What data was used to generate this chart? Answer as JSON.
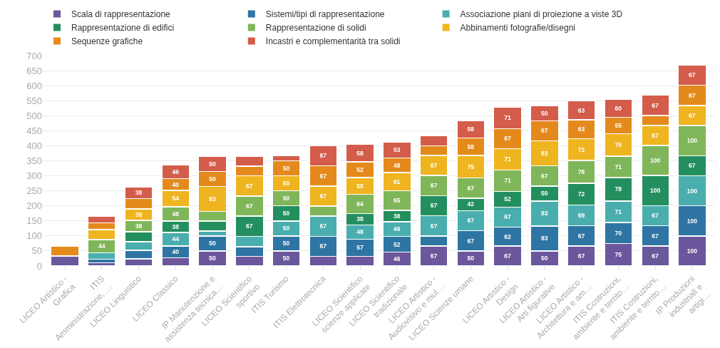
{
  "chart_data": {
    "type": "bar",
    "stacked": true,
    "legend": "top",
    "grid": "y",
    "categories": [
      "LICEO Artistico - Grafica",
      "ITIS Amministrazione, …",
      "LICEO Linguistico",
      "LICEO Classico",
      "IP Manutenzione e assistenza tecnica…",
      "LICEO Scientifico sportivo",
      "ITIS Turismo",
      "ITIS Elettrotecnica",
      "LICEO Scientifico scienze applicate",
      "LICEO Scientifico tradizionale",
      "LICEO Artistico - Audiovisivo e mul…",
      "LICEO Scienze umane",
      "LICEO Artistico - Design",
      "LICEO Artistico - Arti figurative",
      "LICEO Artistico - Architettura e am…",
      "ITIS Costruzioni, ambiente e territo…",
      "ITIS Costruzioni, ambiente e territo…",
      "IP Produzioni industriali e artigi…"
    ],
    "ylim": [
      0,
      700
    ],
    "yticks": [
      0,
      50,
      100,
      150,
      200,
      250,
      300,
      350,
      400,
      450,
      500,
      550,
      600,
      650,
      700
    ],
    "series": [
      {
        "name": "Scala di rappresentazione",
        "color": "#6b579b",
        "values": [
          33,
          11,
          24,
          27,
          50,
          32,
          50,
          32,
          32,
          46,
          67,
          50,
          67,
          50,
          67,
          75,
          67,
          100
        ],
        "value_labels": [
          null,
          null,
          null,
          null,
          "50",
          null,
          "50",
          null,
          null,
          "46",
          "67",
          "50",
          "67",
          "50",
          "67",
          "75",
          "67",
          "100"
        ]
      },
      {
        "name": "Sistemi/tipi di rappresentazione",
        "color": "#2e75a3",
        "values": [
          null,
          11,
          28,
          40,
          50,
          32,
          50,
          67,
          57,
          52,
          33,
          67,
          62,
          83,
          67,
          70,
          67,
          100
        ],
        "value_labels": [
          null,
          null,
          null,
          "40",
          "50",
          null,
          "50",
          "67",
          "57",
          "52",
          null,
          "67",
          "62",
          "83",
          "67",
          "70",
          "67",
          "100"
        ]
      },
      {
        "name": "Associazione piani di proiezione a viste 3D",
        "color": "#4aaeae",
        "values": [
          null,
          22,
          29,
          44,
          16,
          35,
          50,
          67,
          48,
          49,
          67,
          67,
          67,
          83,
          69,
          71,
          67,
          100
        ],
        "value_labels": [
          null,
          null,
          null,
          "44",
          null,
          null,
          "50",
          "67",
          "48",
          "49",
          "67",
          "67",
          "67",
          "83",
          "69",
          "71",
          "67",
          "100"
        ]
      },
      {
        "name": "Rappresentazione di edifici",
        "color": "#248f5e",
        "values": [
          null,
          null,
          33,
          38,
          34,
          67,
          50,
          null,
          38,
          38,
          67,
          42,
          52,
          50,
          72,
          78,
          100,
          67
        ],
        "value_labels": [
          null,
          null,
          null,
          "38",
          null,
          "67",
          "50",
          null,
          "38",
          "38",
          "67",
          "42",
          "52",
          "50",
          "72",
          "78",
          "100",
          "67"
        ]
      },
      {
        "name": "Rappresentazione di solidi",
        "color": "#80b65a",
        "values": [
          null,
          44,
          38,
          48,
          32,
          67,
          50,
          33,
          64,
          65,
          67,
          67,
          71,
          67,
          76,
          71,
          100,
          100
        ],
        "value_labels": [
          null,
          "44",
          "38",
          "48",
          null,
          "67",
          "50",
          null,
          "64",
          "65",
          "67",
          "67",
          "71",
          "67",
          "76",
          "71",
          "100",
          "100"
        ]
      },
      {
        "name": "Abbinamenti fotografie/disegni",
        "color": "#efb520",
        "values": [
          null,
          33,
          38,
          54,
          83,
          67,
          50,
          67,
          55,
          61,
          67,
          75,
          71,
          83,
          72,
          75,
          67,
          67
        ],
        "value_labels": [
          null,
          null,
          "38",
          "54",
          "83",
          "67",
          "50",
          "67",
          "55",
          "61",
          "67",
          "75",
          "71",
          "83",
          "72",
          "75",
          "67",
          "67"
        ]
      },
      {
        "name": "Sequenze grafiche",
        "color": "#e48a1c",
        "values": [
          33,
          22,
          34,
          40,
          50,
          32,
          50,
          67,
          52,
          48,
          32,
          58,
          67,
          67,
          63,
          55,
          33,
          67
        ],
        "value_labels": [
          null,
          null,
          null,
          "40",
          "50",
          null,
          "50",
          "67",
          "52",
          "48",
          null,
          "58",
          "67",
          "67",
          "63",
          "55",
          null,
          "67"
        ]
      },
      {
        "name": "Incastri e complementarità tra solidi",
        "color": "#d45c4b",
        "values": [
          null,
          22,
          38,
          46,
          50,
          34,
          17,
          67,
          58,
          53,
          33,
          58,
          71,
          50,
          63,
          60,
          67,
          67
        ],
        "value_labels": [
          null,
          null,
          "38",
          "46",
          "50",
          null,
          null,
          "67",
          "58",
          "53",
          null,
          "58",
          "71",
          "50",
          "63",
          "60",
          "67",
          "67"
        ]
      }
    ]
  }
}
